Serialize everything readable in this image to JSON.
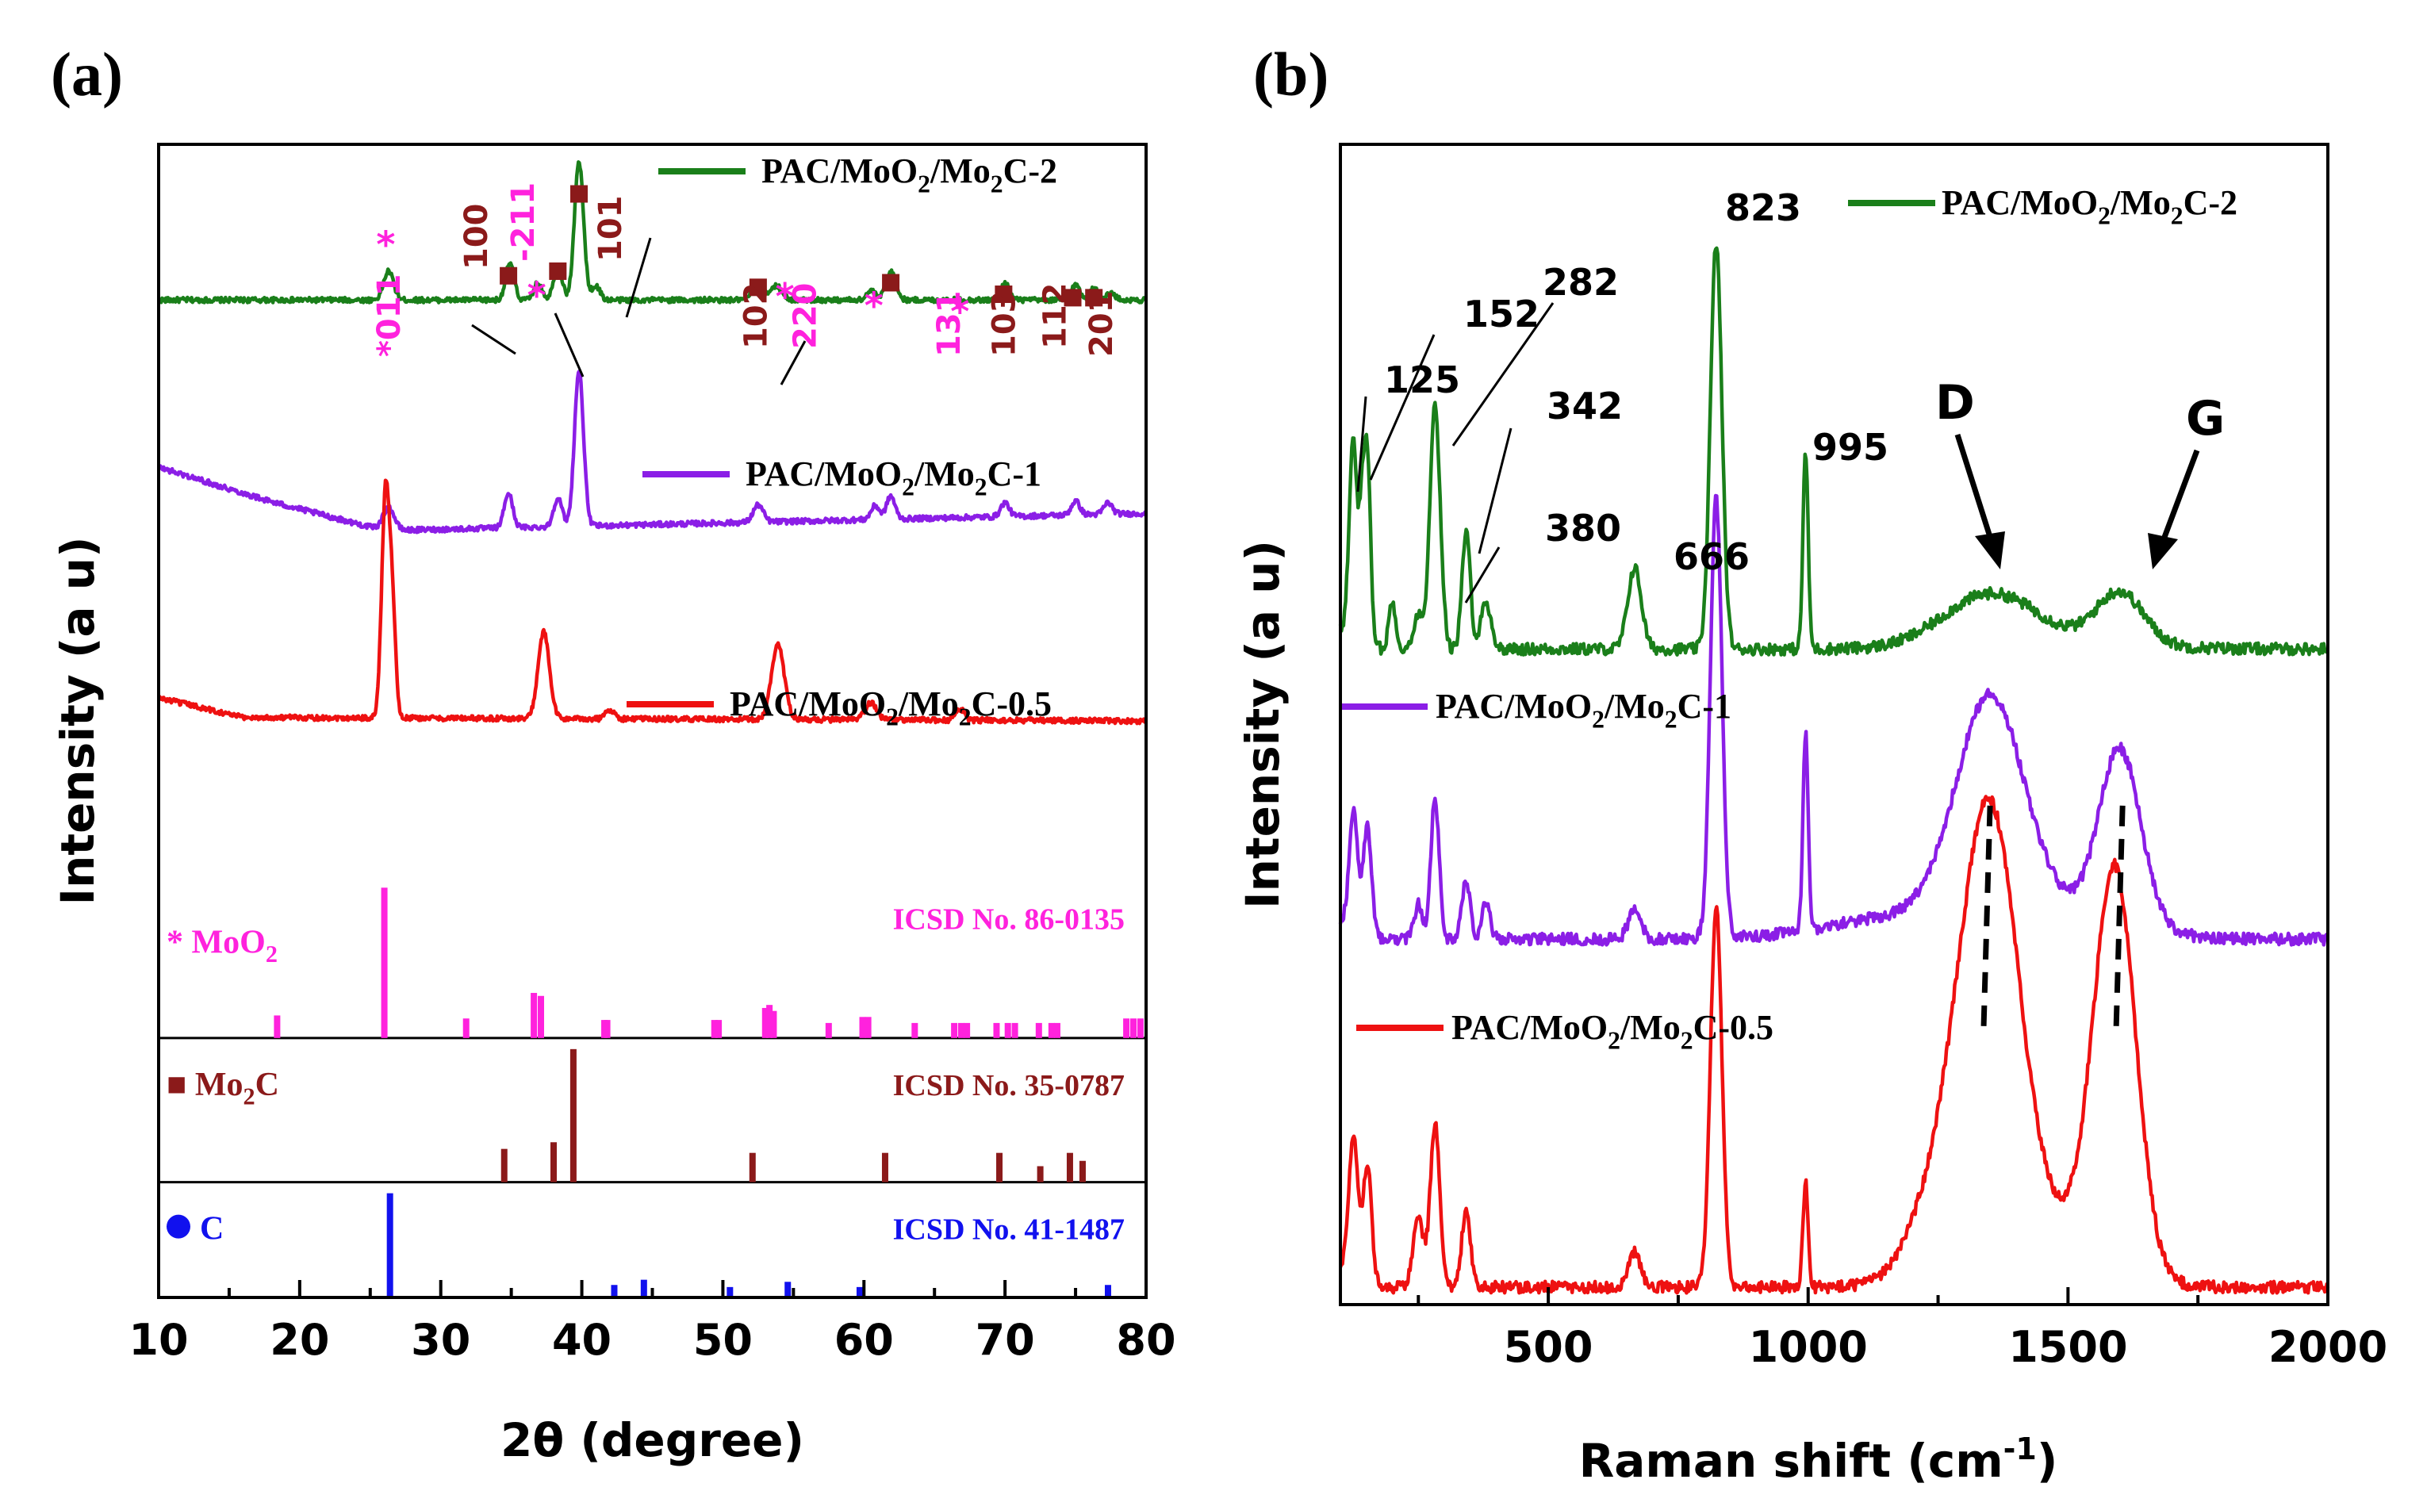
{
  "panels": {
    "a": {
      "label": "(a)"
    },
    "b": {
      "label": "(b)"
    }
  },
  "chart_data": [
    {
      "id": "a",
      "type": "line",
      "title": "",
      "xlabel": "2θ (degree)",
      "ylabel": "Intensity (a u)",
      "xlim": [
        10,
        80
      ],
      "xticks": [
        10,
        20,
        30,
        40,
        50,
        60,
        70,
        80
      ],
      "y_units": "arbitrary offset units (0-100 top to bottom stack)",
      "series": [
        {
          "name": "PAC/MoO2/Mo2C-2",
          "legend": [
            "PAC/MoO",
            "2",
            "/Mo",
            "2",
            "C-2"
          ],
          "color": "#1a7f1a",
          "base": 86.5,
          "baseline_slope": [
            [
              10,
              0.0
            ],
            [
              80,
              0.0
            ]
          ],
          "peaks": [
            [
              26.3,
              2.5,
              0.35
            ],
            [
              34.9,
              3.2,
              0.3
            ],
            [
              36.9,
              1.5,
              0.3
            ],
            [
              38.3,
              3.0,
              0.3
            ],
            [
              39.8,
              12.0,
              0.32
            ],
            [
              41.0,
              1.2,
              0.3
            ],
            [
              52.5,
              1.5,
              0.4
            ],
            [
              53.8,
              1.2,
              0.4
            ],
            [
              60.5,
              0.8,
              0.3
            ],
            [
              61.9,
              2.5,
              0.35
            ],
            [
              70.0,
              1.5,
              0.3
            ],
            [
              75.0,
              1.3,
              0.3
            ],
            [
              76.3,
              1.0,
              0.3
            ],
            [
              77.5,
              0.6,
              0.3
            ]
          ]
        },
        {
          "name": "PAC/MoO2/Mo2C-1",
          "legend": [
            "PAC/MoO",
            "2",
            "/Mo",
            "2",
            "C-1"
          ],
          "color": "#8b1ee6",
          "base": 68.0,
          "baseline_slope": [
            [
              10,
              4.0
            ],
            [
              18,
              1.0
            ],
            [
              26,
              -1.5
            ],
            [
              80,
              0.0
            ]
          ],
          "peaks": [
            [
              26.3,
              2.0,
              0.4
            ],
            [
              34.8,
              3.0,
              0.3
            ],
            [
              38.3,
              2.5,
              0.3
            ],
            [
              39.8,
              13.5,
              0.32
            ],
            [
              52.5,
              1.5,
              0.35
            ],
            [
              60.8,
              1.2,
              0.3
            ],
            [
              61.9,
              2.0,
              0.3
            ],
            [
              70.0,
              1.2,
              0.3
            ],
            [
              75.0,
              1.2,
              0.3
            ],
            [
              77.3,
              1.0,
              0.3
            ]
          ]
        },
        {
          "name": "PAC/MoO2/Mo2C-0.5",
          "legend": [
            "PAC/MoO",
            "2",
            "/Mo",
            "2",
            "C-0.5"
          ],
          "color": "#ee1111",
          "base": 50.0,
          "baseline_slope": [
            [
              10,
              2.0
            ],
            [
              16,
              0.3
            ],
            [
              80,
              0.0
            ]
          ],
          "peaks": [
            [
              26.1,
              20.0,
              0.28
            ],
            [
              26.6,
              8.0,
              0.22
            ],
            [
              37.3,
              7.5,
              0.4
            ],
            [
              42.0,
              0.8,
              0.3
            ],
            [
              53.9,
              6.5,
              0.45
            ],
            [
              60.5,
              1.5,
              0.4
            ],
            [
              66.8,
              1.0,
              0.3
            ]
          ]
        }
      ],
      "references": [
        {
          "name": "MoO2",
          "legend": [
            "* MoO",
            "2"
          ],
          "card": "ICSD No. 86-0135",
          "color": "#ff22dd",
          "row_top": 36.5,
          "row_bottom": 22.5,
          "sticks": [
            [
              18.4,
              0.15
            ],
            [
              26.0,
              1.0
            ],
            [
              31.8,
              0.13
            ],
            [
              36.6,
              0.3
            ],
            [
              37.1,
              0.28
            ],
            [
              41.6,
              0.12
            ],
            [
              41.8,
              0.12
            ],
            [
              49.4,
              0.12
            ],
            [
              49.7,
              0.12
            ],
            [
              53.0,
              0.2
            ],
            [
              53.3,
              0.22
            ],
            [
              53.6,
              0.18
            ],
            [
              57.5,
              0.1
            ],
            [
              59.9,
              0.14
            ],
            [
              60.3,
              0.14
            ],
            [
              63.6,
              0.1
            ],
            [
              66.4,
              0.1
            ],
            [
              66.9,
              0.1
            ],
            [
              67.3,
              0.1
            ],
            [
              69.4,
              0.1
            ],
            [
              70.2,
              0.1
            ],
            [
              70.7,
              0.1
            ],
            [
              72.4,
              0.1
            ],
            [
              73.3,
              0.1
            ],
            [
              73.7,
              0.1
            ],
            [
              78.6,
              0.13
            ],
            [
              79.1,
              0.13
            ],
            [
              79.6,
              0.13
            ]
          ]
        },
        {
          "name": "Mo2C",
          "legend": [
            "■ Mo",
            "2",
            "C"
          ],
          "card": "ICSD No. 35-0787",
          "color": "#8b1a1a",
          "row_top": 22.5,
          "row_bottom": 10.0,
          "sticks": [
            [
              34.5,
              0.25
            ],
            [
              38.0,
              0.3
            ],
            [
              39.4,
              1.0
            ],
            [
              52.1,
              0.22
            ],
            [
              61.5,
              0.22
            ],
            [
              69.6,
              0.22
            ],
            [
              72.5,
              0.12
            ],
            [
              74.6,
              0.22
            ],
            [
              75.5,
              0.16
            ]
          ]
        },
        {
          "name": "C",
          "legend": [
            "● C"
          ],
          "card": "ICSD No. 41-1487",
          "color": "#1111ee",
          "row_top": 10.0,
          "row_bottom": 0.0,
          "sticks": [
            [
              26.4,
              1.0
            ],
            [
              42.3,
              0.12
            ],
            [
              44.4,
              0.17
            ],
            [
              50.5,
              0.1
            ],
            [
              54.6,
              0.15
            ],
            [
              59.7,
              0.1
            ],
            [
              77.3,
              0.12
            ]
          ]
        }
      ],
      "annotations": {
        "hkl_labels": [
          {
            "text": "*011",
            "x": 26.3,
            "color": "#ff22dd"
          },
          {
            "text": "100",
            "x": 32.5,
            "color": "#8b1a1a"
          },
          {
            "text": "-211",
            "x": 35.8,
            "color": "#ff22dd"
          },
          {
            "text": "101",
            "x": 42.0,
            "color": "#8b1a1a"
          },
          {
            "text": "102",
            "x": 52.3,
            "color": "#8b1a1a"
          },
          {
            "text": "220",
            "x": 55.8,
            "color": "#ff22dd"
          },
          {
            "text": "131",
            "x": 66.0,
            "color": "#ff22dd"
          },
          {
            "text": "103",
            "x": 69.9,
            "color": "#8b1a1a"
          },
          {
            "text": "112",
            "x": 73.5,
            "color": "#8b1a1a"
          },
          {
            "text": "201",
            "x": 76.8,
            "color": "#8b1a1a"
          }
        ],
        "markers": [
          {
            "shape": "square",
            "x": 34.8,
            "y": 88.6,
            "color": "#8b1a1a"
          },
          {
            "shape": "square",
            "x": 38.3,
            "y": 89.0,
            "color": "#8b1a1a"
          },
          {
            "shape": "square",
            "x": 39.8,
            "y": 95.7,
            "color": "#8b1a1a"
          },
          {
            "shape": "square",
            "x": 52.5,
            "y": 87.6,
            "color": "#8b1a1a"
          },
          {
            "shape": "square",
            "x": 61.9,
            "y": 88.0,
            "color": "#8b1a1a"
          },
          {
            "shape": "square",
            "x": 69.9,
            "y": 87.0,
            "color": "#8b1a1a"
          },
          {
            "shape": "square",
            "x": 74.8,
            "y": 86.7,
            "color": "#8b1a1a"
          },
          {
            "shape": "square",
            "x": 76.3,
            "y": 86.7,
            "color": "#8b1a1a"
          },
          {
            "shape": "star",
            "x": 26.1,
            "y": 91.3,
            "color": "#ff22dd"
          },
          {
            "shape": "star",
            "x": 36.8,
            "y": 86.9,
            "color": "#ff22dd"
          },
          {
            "shape": "star",
            "x": 54.4,
            "y": 86.8,
            "color": "#ff22dd"
          },
          {
            "shape": "star",
            "x": 60.7,
            "y": 86.0,
            "color": "#ff22dd"
          },
          {
            "shape": "star",
            "x": 66.8,
            "y": 85.5,
            "color": "#ff22dd"
          }
        ]
      }
    },
    {
      "id": "b",
      "type": "line",
      "title": "",
      "xlabel": "Raman shift (cm",
      "xlabel_sup": "-1",
      "xlabel_end": ")",
      "ylabel": "Intensity (a u)",
      "xlim": [
        100,
        2000
      ],
      "xticks": [
        500,
        1000,
        1500,
        2000
      ],
      "ylim": [
        0,
        100
      ],
      "series": [
        {
          "name": "PAC/MoO2/Mo2C-2",
          "legend": [
            "PAC/MoO",
            "2",
            "/Mo",
            "2",
            "C-2"
          ],
          "color": "#1a7f1a",
          "base": 56.5,
          "peaks": [
            [
              125,
              17,
              8
            ],
            [
              142,
              9,
              5
            ],
            [
              152,
              16,
              6
            ],
            [
              200,
              4,
              7
            ],
            [
              250,
              3,
              8
            ],
            [
              282,
              21,
              10
            ],
            [
              342,
              10,
              8
            ],
            [
              380,
              4,
              10
            ],
            [
              666,
              7,
              13
            ],
            [
              823,
              35,
              11
            ],
            [
              995,
              17,
              5
            ],
            [
              1350,
              4.5,
              90
            ],
            [
              1600,
              4.5,
              45
            ],
            [
              1500,
              0.5,
              150
            ]
          ]
        },
        {
          "name": "PAC/MoO2/Mo2C-1",
          "legend": [
            "PAC/MoO",
            "2",
            "/Mo",
            "2",
            "C-1"
          ],
          "color": "#8b1ee6",
          "base": 31.5,
          "peaks": [
            [
              125,
              10,
              8
            ],
            [
              152,
              9,
              8
            ],
            [
              250,
              3,
              8
            ],
            [
              282,
              12,
              8
            ],
            [
              342,
              5,
              8
            ],
            [
              380,
              3,
              8
            ],
            [
              666,
              2.5,
              12
            ],
            [
              823,
              38,
              11
            ],
            [
              995,
              17,
              5
            ],
            [
              1350,
              19,
              65
            ],
            [
              1500,
              2,
              120
            ],
            [
              1600,
              15,
              40
            ],
            [
              1200,
              2,
              150
            ]
          ]
        },
        {
          "name": "PAC/MoO2/Mo2C-0.5",
          "legend": [
            "PAC/MoO",
            "2",
            "/Mo",
            "2",
            "C-0.5"
          ],
          "color": "#ee1111",
          "base": 1.5,
          "peaks": [
            [
              125,
              12,
              9
            ],
            [
              152,
              10,
              8
            ],
            [
              250,
              6,
              10
            ],
            [
              282,
              14,
              9
            ],
            [
              342,
              7,
              8
            ],
            [
              666,
              3,
              12
            ],
            [
              823,
              33,
              11
            ],
            [
              995,
              9,
              5
            ],
            [
              1260,
              8,
              60
            ],
            [
              1350,
              37,
              55
            ],
            [
              1590,
              34,
              40
            ],
            [
              1470,
              5,
              100
            ]
          ]
        }
      ],
      "annotations": {
        "peak_labels": [
          "125",
          "152",
          "282",
          "342",
          "380",
          "666",
          "823",
          "995"
        ],
        "band_labels": [
          "D",
          "G"
        ]
      }
    }
  ]
}
